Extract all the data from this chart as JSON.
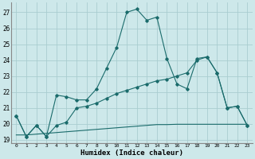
{
  "xlabel": "Humidex (Indice chaleur)",
  "bg_color": "#cde8ea",
  "grid_color": "#aacdd0",
  "line_color": "#1a6b6b",
  "xlim": [
    -0.5,
    23.5
  ],
  "ylim": [
    18.8,
    27.6
  ],
  "yticks": [
    19,
    20,
    21,
    22,
    23,
    24,
    25,
    26,
    27
  ],
  "xticks": [
    0,
    1,
    2,
    3,
    4,
    5,
    6,
    7,
    8,
    9,
    10,
    11,
    12,
    13,
    14,
    15,
    16,
    17,
    18,
    19,
    20,
    21,
    22,
    23
  ],
  "s1_x": [
    0,
    1,
    2,
    3,
    4,
    5,
    6,
    7,
    8,
    9,
    10,
    11,
    12,
    13,
    14,
    15,
    16,
    17,
    18,
    19,
    20,
    21,
    22,
    23
  ],
  "s1_y": [
    20.5,
    19.2,
    19.9,
    19.2,
    21.8,
    21.7,
    21.5,
    21.5,
    22.2,
    23.5,
    24.8,
    27.0,
    27.2,
    26.5,
    26.7,
    24.1,
    22.5,
    22.2,
    24.1,
    24.2,
    23.2,
    21.0,
    21.1,
    19.9
  ],
  "s2_x": [
    0,
    1,
    2,
    3,
    4,
    5,
    6,
    7,
    8,
    9,
    10,
    11,
    12,
    13,
    14,
    15,
    16,
    17,
    18,
    19,
    20,
    21,
    22,
    23
  ],
  "s2_y": [
    19.3,
    19.3,
    19.35,
    19.4,
    19.45,
    19.5,
    19.55,
    19.6,
    19.65,
    19.7,
    19.75,
    19.8,
    19.85,
    19.9,
    19.95,
    19.95,
    19.97,
    19.97,
    19.97,
    19.97,
    19.97,
    19.97,
    19.97,
    19.97
  ],
  "s3_x": [
    0,
    1,
    2,
    3,
    4,
    5,
    6,
    7,
    8,
    9,
    10,
    11,
    12,
    13,
    14,
    15,
    16,
    17,
    18,
    19,
    20,
    21,
    22,
    23
  ],
  "s3_y": [
    20.5,
    19.2,
    19.9,
    19.2,
    19.9,
    20.1,
    21.0,
    21.1,
    21.3,
    21.6,
    21.9,
    22.1,
    22.3,
    22.5,
    22.7,
    22.8,
    23.0,
    23.2,
    24.0,
    24.2,
    23.2,
    21.0,
    21.1,
    19.9
  ]
}
